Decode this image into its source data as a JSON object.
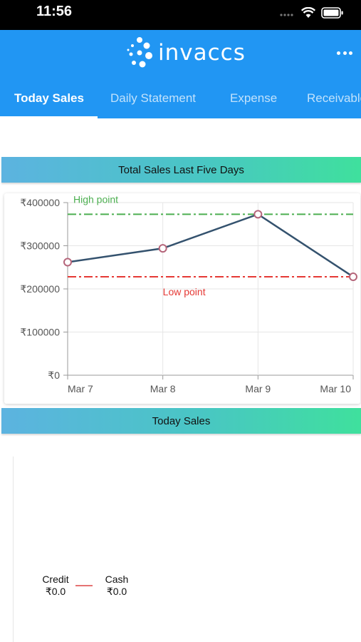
{
  "status": {
    "time": "11:56"
  },
  "app": {
    "name": "invaccs"
  },
  "tabs": [
    "Today Sales",
    "Daily Statement",
    "Expense",
    "Receivables"
  ],
  "sections": {
    "chart_title": "Total Sales Last Five Days",
    "today_title": "Today Sales"
  },
  "chart_data": {
    "type": "line",
    "categories": [
      "Mar 7",
      "Mar 8",
      "Mar 9",
      "Mar 10"
    ],
    "series": [
      {
        "values": [
          262000,
          294000,
          373000,
          228000
        ],
        "color": "#34526e"
      }
    ],
    "yticks": [
      "₹0",
      "₹100000",
      "₹200000",
      "₹300000",
      "₹400000"
    ],
    "ylim": [
      0,
      400000
    ],
    "annotations": [
      {
        "label": "High point",
        "value": 373000,
        "color": "#4caf50"
      },
      {
        "label": "Low point",
        "value": 228000,
        "color": "#e53935"
      }
    ],
    "grid": true
  },
  "today_sales": {
    "legend": [
      {
        "label": "Credit",
        "value": "₹0.0"
      },
      {
        "label": "Cash",
        "value": "₹0.0"
      }
    ],
    "legend_color": "#e57373"
  },
  "colors": {
    "appbar": "#2196f3",
    "accent": "#3fe09d"
  }
}
